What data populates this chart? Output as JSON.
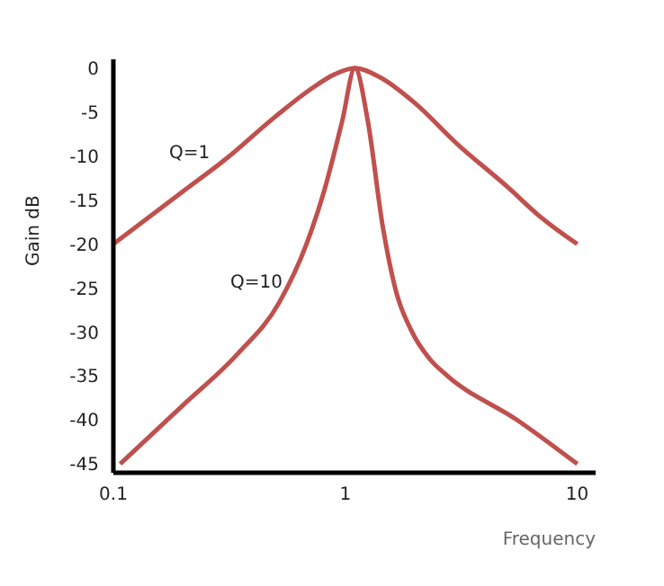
{
  "chart_data": {
    "type": "line",
    "xlabel": "Frequency",
    "ylabel": "Gain dB",
    "log": "x",
    "xlim": [
      0.1,
      12
    ],
    "xticks": [
      0.1,
      1,
      10
    ],
    "ylim": [
      -46,
      1
    ],
    "yticks": [
      0,
      -5,
      -10,
      -15,
      -20,
      -25,
      -30,
      -35,
      -40,
      -45
    ],
    "grid": false,
    "marker": "none",
    "line_style": "solid",
    "series": [
      {
        "color": "#c0504d",
        "x": [
          0.1,
          0.2,
          0.3,
          0.5,
          0.7,
          0.9,
          1.1,
          1.4,
          2,
          3,
          5,
          7,
          10
        ],
        "values": [
          -20,
          -14,
          -10.5,
          -5.5,
          -2.5,
          -0.7,
          0,
          -1,
          -4,
          -8.5,
          -13.5,
          -17,
          -20
        ]
      },
      {
        "color": "#c0504d",
        "x": [
          0.107,
          0.2,
          0.34,
          0.52,
          0.68,
          0.81,
          0.97,
          1.1,
          1.25,
          1.45,
          1.63,
          1.94,
          2.3,
          2.76,
          5.5,
          10
        ],
        "values": [
          -45,
          -38.3,
          -32.6,
          -26.6,
          -20,
          -14,
          -6,
          0,
          -6,
          -18,
          -24.7,
          -30,
          -33,
          -35,
          -40,
          -45
        ]
      }
    ],
    "annotations": [
      "Q=1",
      "Q=10"
    ]
  }
}
